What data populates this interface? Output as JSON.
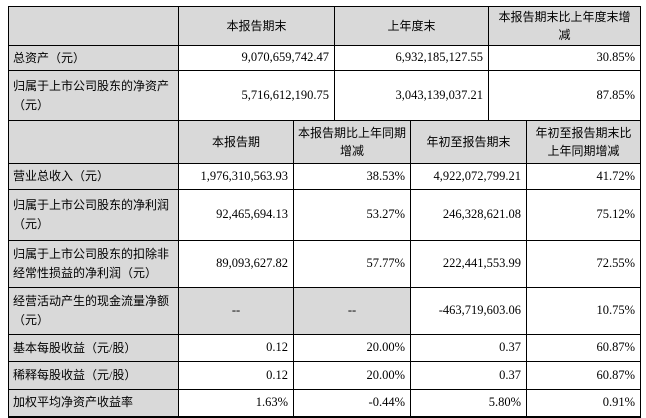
{
  "colors": {
    "header_bg": "#d9d9d9",
    "border": "#000000",
    "text": "#000000",
    "background": "#ffffff"
  },
  "table_period_end": {
    "headers": [
      "",
      "本报告期末",
      "上年度末",
      "本报告期末比上年度末增减"
    ],
    "rows": [
      {
        "label": "总资产（元）",
        "values": [
          "9,070,659,742.47",
          "6,932,185,127.55",
          "30.85%"
        ]
      },
      {
        "label": "归属于上市公司股东的净资产（元）",
        "values": [
          "5,716,612,190.75",
          "3,043,139,037.21",
          "87.85%"
        ]
      }
    ]
  },
  "table_period": {
    "headers": [
      "",
      "本报告期",
      "本报告期比上年同期增减",
      "年初至报告期末",
      "年初至报告期末比上年同期增减"
    ],
    "rows": [
      {
        "label": "营业总收入（元）",
        "values": [
          "1,976,310,563.93",
          "38.53%",
          "4,922,072,799.21",
          "41.72%"
        ]
      },
      {
        "label": "归属于上市公司股东的净利润（元）",
        "values": [
          "92,465,694.13",
          "53.27%",
          "246,328,621.08",
          "75.12%"
        ]
      },
      {
        "label": "归属于上市公司股东的扣除非经常性损益的净利润（元）",
        "values": [
          "89,093,627.82",
          "57.77%",
          "222,441,553.99",
          "72.55%"
        ]
      },
      {
        "label": "经营活动产生的现金流量净额（元）",
        "values": [
          "--",
          "--",
          "-463,719,603.06",
          "10.75%"
        ]
      },
      {
        "label": "基本每股收益（元/股）",
        "values": [
          "0.12",
          "20.00%",
          "0.37",
          "60.87%"
        ]
      },
      {
        "label": "稀释每股收益（元/股）",
        "values": [
          "0.12",
          "20.00%",
          "0.37",
          "60.87%"
        ]
      },
      {
        "label": "加权平均净资产收益率",
        "values": [
          "1.63%",
          "-0.44%",
          "5.80%",
          "0.91%"
        ]
      }
    ]
  }
}
